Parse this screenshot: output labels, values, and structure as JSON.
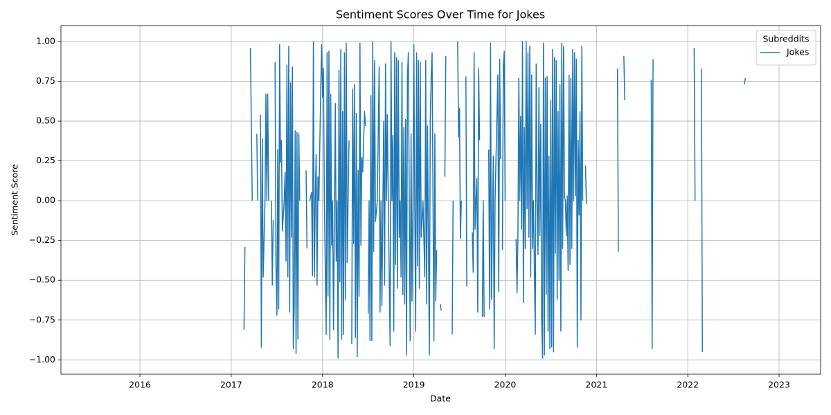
{
  "chart_data": {
    "type": "line",
    "title": "Sentiment Scores Over Time for Jokes",
    "xlabel": "Date",
    "ylabel": "Sentiment Score",
    "legend_title": "Subreddits",
    "legend_loc": "upper right",
    "grid": true,
    "xlim": [
      2015.135,
      2023.455
    ],
    "ylim": [
      -1.09,
      1.1
    ],
    "xticks": [
      2016,
      2017,
      2018,
      2019,
      2020,
      2021,
      2022,
      2023
    ],
    "yticks": [
      {
        "value": -1,
        "label": "−1.00"
      },
      {
        "value": -0.75,
        "label": "−0.75"
      },
      {
        "value": -0.5,
        "label": "−0.50"
      },
      {
        "value": -0.25,
        "label": "−0.25"
      },
      {
        "value": 0,
        "label": "0.00"
      },
      {
        "value": 0.25,
        "label": "0.25"
      },
      {
        "value": 0.5,
        "label": "0.50"
      },
      {
        "value": 0.75,
        "label": "0.75"
      },
      {
        "value": 1,
        "label": "1.00"
      }
    ],
    "x": [
      2017.14,
      2017.15,
      null,
      2017.21,
      2017.22,
      2017.23,
      null,
      2017.28,
      2017.29,
      null,
      2017.32,
      2017.33,
      2017.34,
      2017.35,
      2017.37,
      2017.38,
      2017.39,
      2017.4,
      2017.41,
      null,
      2017.44,
      2017.45,
      2017.46,
      null,
      2017.48,
      2017.49,
      2017.5,
      2017.51,
      2017.52,
      2017.53,
      2017.54,
      2017.55,
      2017.56,
      2017.58,
      2017.59,
      2017.6,
      2017.61,
      2017.62,
      2017.63,
      2017.64,
      2017.65,
      2017.66,
      2017.67,
      2017.68,
      2017.69,
      2017.7,
      2017.71,
      2017.72,
      2017.73,
      2017.74,
      2017.75,
      null,
      2017.82,
      2017.83,
      null,
      2017.86,
      2017.88,
      2017.89,
      2017.9,
      2017.91,
      2017.92,
      2017.93,
      2017.94,
      2017.95,
      2017.96,
      2017.98,
      2017.99,
      2018.0,
      2018.01,
      2018.02,
      2018.04,
      2018.05,
      2018.06,
      2018.07,
      2018.08,
      2018.09,
      2018.1,
      2018.11,
      2018.12,
      2018.14,
      2018.15,
      2018.16,
      2018.17,
      2018.18,
      2018.19,
      2018.2,
      2018.21,
      2018.22,
      2018.23,
      2018.24,
      2018.25,
      2018.26,
      2018.27,
      2018.28,
      2018.29,
      null,
      2018.32,
      2018.33,
      2018.34,
      2018.35,
      2018.36,
      2018.37,
      2018.38,
      2018.39,
      2018.4,
      2018.41,
      2018.42,
      2018.43,
      2018.44,
      2018.46,
      2018.47,
      null,
      2018.5,
      2018.51,
      2018.52,
      2018.53,
      2018.54,
      2018.55,
      2018.56,
      2018.57,
      2018.58,
      2018.6,
      2018.62,
      2018.63,
      2018.64,
      2018.65,
      2018.67,
      2018.68,
      2018.69,
      2018.7,
      2018.71,
      2018.72,
      2018.74,
      2018.75,
      2018.76,
      2018.77,
      2018.78,
      2018.79,
      2018.8,
      2018.81,
      2018.82,
      2018.83,
      2018.84,
      2018.85,
      2018.86,
      2018.87,
      2018.88,
      2018.89,
      2018.9,
      2018.91,
      2018.92,
      2018.93,
      2018.94,
      2018.95,
      2018.96,
      2018.97,
      2018.98,
      2018.99,
      2019.0,
      2019.01,
      2019.02,
      2019.03,
      2019.04,
      2019.05,
      2019.06,
      2019.07,
      2019.08,
      2019.1,
      2019.12,
      2019.13,
      2019.14,
      2019.15,
      2019.17,
      2019.18,
      2019.19,
      2019.2,
      2019.21,
      2019.22,
      2019.23,
      2019.24,
      2019.25,
      null,
      2019.29,
      2019.3,
      null,
      2019.34,
      2019.35,
      null,
      2019.42,
      2019.43,
      null,
      2019.48,
      2019.49,
      2019.5,
      2019.51,
      2019.52,
      null,
      2019.57,
      2019.58,
      null,
      2019.64,
      2019.65,
      2019.66,
      2019.67,
      2019.68,
      2019.69,
      2019.7,
      2019.71,
      2019.72,
      null,
      2019.75,
      2019.76,
      2019.77,
      null,
      2019.82,
      2019.83,
      2019.84,
      2019.85,
      2019.87,
      2019.88,
      2019.89,
      2019.9,
      2019.92,
      2019.93,
      2019.94,
      2019.95,
      null,
      2019.97,
      2019.98,
      2019.99,
      2020.0,
      null,
      2020.12,
      2020.13,
      2020.14,
      2020.15,
      2020.16,
      2020.17,
      2020.18,
      2020.19,
      2020.2,
      2020.21,
      2020.22,
      2020.23,
      2020.24,
      2020.25,
      2020.26,
      2020.27,
      2020.28,
      2020.29,
      2020.3,
      2020.31,
      2020.33,
      2020.34,
      2020.35,
      2020.36,
      2020.37,
      2020.38,
      2020.39,
      2020.4,
      2020.41,
      2020.42,
      2020.43,
      2020.44,
      2020.45,
      2020.46,
      2020.47,
      2020.48,
      2020.49,
      2020.5,
      2020.51,
      2020.52,
      2020.53,
      2020.54,
      2020.55,
      2020.56,
      2020.57,
      2020.58,
      2020.59,
      2020.6,
      2020.61,
      2020.62,
      2020.63,
      2020.64,
      2020.65,
      2020.66,
      2020.67,
      2020.68,
      2020.69,
      2020.7,
      2020.71,
      2020.72,
      2020.73,
      2020.74,
      2020.75,
      2020.76,
      2020.77,
      2020.78,
      2020.79,
      2020.8,
      2020.81,
      2020.82,
      2020.83,
      2020.84,
      2020.85,
      null,
      2020.88,
      2020.89,
      null,
      2021.23,
      2021.24,
      null,
      2021.3,
      2021.31,
      null,
      2021.6,
      2021.61,
      2021.62,
      null,
      2022.07,
      2022.08,
      null,
      2022.15,
      2022.16,
      null,
      2022.62,
      2022.63
    ],
    "series": [
      {
        "name": "Jokes",
        "color": "#1f77b4",
        "values": [
          -0.81,
          -0.29,
          null,
          0.96,
          0.5,
          0,
          null,
          0.42,
          0,
          null,
          0.54,
          -0.92,
          0.39,
          -0.48,
          0,
          0.67,
          0,
          0.67,
          0,
          null,
          0,
          -0.53,
          -0.12,
          null,
          0.87,
          -0.4,
          -0.72,
          0.32,
          -0.68,
          0.98,
          0.24,
          0.38,
          -0.19,
          0,
          0.18,
          -0.38,
          0.85,
          -0.48,
          0.97,
          -0.7,
          0.74,
          -0.23,
          0.84,
          -0.93,
          -0.66,
          0.44,
          -0.96,
          0.43,
          -0.87,
          0.42,
          0,
          null,
          0.19,
          -0.3,
          null,
          0,
          0.05,
          -0.47,
          1,
          -0.48,
          0,
          0.29,
          -0.53,
          0.15,
          0,
          0.69,
          0.98,
          0.65,
          0.83,
          0,
          -0.84,
          0.93,
          -0.6,
          0.94,
          -0.87,
          0.67,
          -0.28,
          0,
          -0.81,
          0.61,
          -0.38,
          0,
          -0.99,
          0.82,
          -0.51,
          0.95,
          -0.87,
          0.56,
          -0.84,
          0.93,
          -0.62,
          0.99,
          -0.39,
          0,
          0.38,
          null,
          -0.9,
          0.7,
          -0.27,
          0.73,
          -0.86,
          0.55,
          -0.98,
          0.19,
          -0.6,
          0.99,
          -0.28,
          0.27,
          0.18,
          0.56,
          0.47,
          null,
          -0.71,
          0,
          -0.88,
          0.66,
          -0.88,
          1,
          -0.32,
          0.88,
          -0.13,
          0,
          0.84,
          -0.7,
          0,
          -0.66,
          0.5,
          -0.53,
          0.86,
          0,
          0.54,
          0,
          -0.91,
          1,
          0,
          0.41,
          -0.82,
          0.93,
          -0.4,
          0.9,
          -0.55,
          0.88,
          -0.23,
          0,
          -0.48,
          0.87,
          -0.59,
          0.46,
          -0.65,
          0.51,
          -0.97,
          0.78,
          0.93,
          0,
          -0.88,
          0.42,
          -0.63,
          0,
          0.98,
          0,
          -0.82,
          0.93,
          -0.41,
          0.88,
          -0.55,
          0.87,
          -0.23,
          0,
          -0.48,
          0.88,
          -0.65,
          0.47,
          -0.97,
          0.51,
          0.78,
          0.93,
          0,
          -0.88,
          0.42,
          -0.63,
          -0.31,
          null,
          -0.65,
          -0.69,
          null,
          0.15,
          0.91,
          null,
          -0.84,
          0,
          null,
          1,
          0.4,
          0.58,
          -0.24,
          0,
          null,
          0.78,
          -0.54,
          null,
          -0.2,
          -0.45,
          0.93,
          -0.18,
          0,
          0.14,
          -0.7,
          0.83,
          0.38,
          null,
          -0.73,
          0,
          -0.73,
          null,
          0.32,
          -0.68,
          0.99,
          -0.62,
          0.28,
          -0.93,
          0,
          0.27,
          0.79,
          -0.57,
          0.89,
          0.26,
          null,
          -0.31,
          0.84,
          0.94,
          0,
          null,
          -0.24,
          -0.58,
          -0.23,
          0.77,
          0,
          0.53,
          -0.18,
          1,
          -0.64,
          0.46,
          -0.3,
          1,
          -0.05,
          0.93,
          -0.23,
          0.97,
          -0.48,
          0.79,
          -0.3,
          0,
          -0.84,
          0.86,
          0,
          -0.34,
          0.71,
          -0.22,
          0.48,
          -0.75,
          -0.99,
          0.99,
          -0.97,
          0.77,
          -0.59,
          0.78,
          -0.82,
          0.28,
          -0.93,
          0.63,
          -0.92,
          0.95,
          -0.95,
          0.9,
          -0.33,
          0.88,
          -0.62,
          0.56,
          -0.5,
          0.73,
          -0.82,
          0.99,
          -0.3,
          0.97,
          0.02,
          0,
          -0.22,
          0.03,
          -0.44,
          0.79,
          -0.4,
          0.77,
          -0.3,
          0.95,
          0,
          0.93,
          0.03,
          0.89,
          -0.92,
          0.38,
          -0.09,
          0.56,
          -0.75,
          0.97,
          0,
          null,
          0.22,
          -0.02,
          null,
          0.83,
          -0.32,
          null,
          0.91,
          0.63,
          null,
          0.76,
          -0.93,
          0.89,
          null,
          0.96,
          0,
          null,
          0.83,
          -0.95,
          null,
          0.73,
          0.77
        ]
      }
    ]
  }
}
